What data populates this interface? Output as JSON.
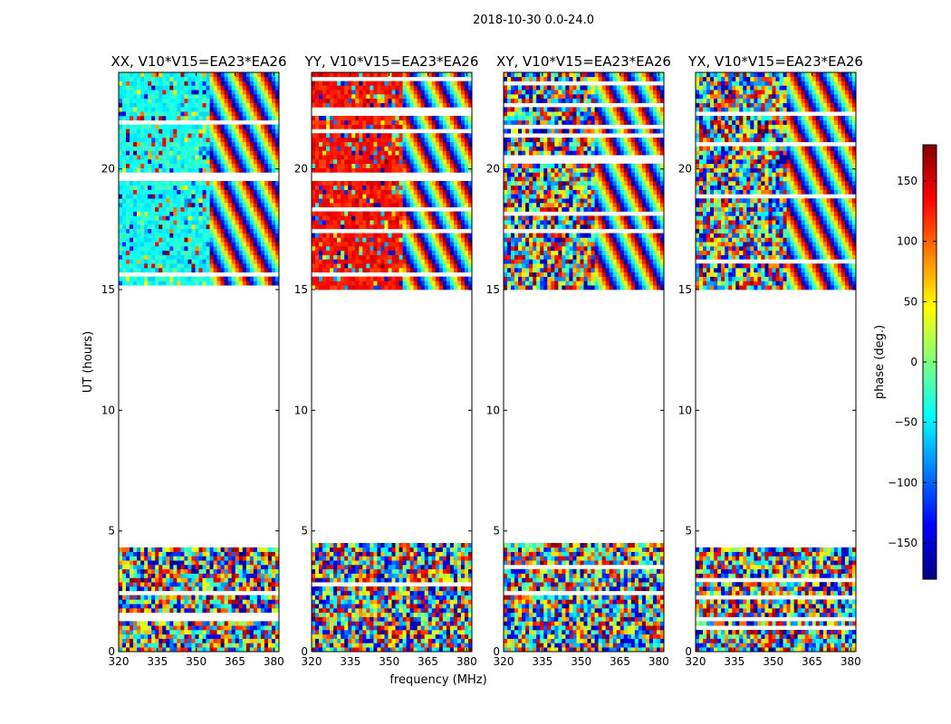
{
  "figure": {
    "suptitle": "2018-10-30 0.0-24.0",
    "xlabel": "frequency (MHz)",
    "ylabel": "UT (hours)"
  },
  "chart_data": [
    {
      "type": "heatmap",
      "title": "XX, V10*V15=EA23*EA26",
      "xlabel": "frequency (MHz)",
      "ylabel": "UT (hours)",
      "xlim": [
        320,
        382
      ],
      "ylim": [
        0,
        24
      ],
      "xticks": [
        320,
        335,
        350,
        365,
        380
      ],
      "yticks": [
        0,
        5,
        10,
        15,
        20
      ],
      "data_ut_ranges": [
        [
          0.0,
          4.5
        ],
        [
          15.0,
          24.0
        ]
      ],
      "dominant_phase_deg": -40
    },
    {
      "type": "heatmap",
      "title": "YY, V10*V15=EA23*EA26",
      "xlabel": "frequency (MHz)",
      "ylabel": "UT (hours)",
      "xlim": [
        320,
        382
      ],
      "ylim": [
        0,
        24
      ],
      "xticks": [
        320,
        335,
        350,
        365,
        380
      ],
      "yticks": [
        0,
        5,
        10,
        15,
        20
      ],
      "data_ut_ranges": [
        [
          0.0,
          4.5
        ],
        [
          15.0,
          24.0
        ]
      ],
      "dominant_phase_deg": 130
    },
    {
      "type": "heatmap",
      "title": "XY, V10*V15=EA23*EA26",
      "xlabel": "frequency (MHz)",
      "ylabel": "UT (hours)",
      "xlim": [
        320,
        382
      ],
      "ylim": [
        0,
        24
      ],
      "xticks": [
        320,
        335,
        350,
        365,
        380
      ],
      "yticks": [
        0,
        5,
        10,
        15,
        20
      ],
      "data_ut_ranges": [
        [
          0.0,
          4.5
        ],
        [
          15.0,
          24.0
        ]
      ],
      "dominant_phase_deg": null
    },
    {
      "type": "heatmap",
      "title": "YX, V10*V15=EA23*EA26",
      "xlabel": "frequency (MHz)",
      "ylabel": "UT (hours)",
      "xlim": [
        320,
        382
      ],
      "ylim": [
        0,
        24
      ],
      "xticks": [
        320,
        335,
        350,
        365,
        380
      ],
      "yticks": [
        0,
        5,
        10,
        15,
        20
      ],
      "data_ut_ranges": [
        [
          0.0,
          4.5
        ],
        [
          15.0,
          24.0
        ]
      ],
      "dominant_phase_deg": null
    }
  ],
  "colorbar": {
    "label": "phase (deg.)",
    "range": [
      -180,
      180
    ],
    "ticks": [
      150,
      100,
      50,
      0,
      -50,
      -100,
      -150
    ],
    "tick_labels": [
      "150",
      "100",
      "50",
      "0",
      "−50",
      "−100",
      "−150"
    ],
    "colormap": "jet",
    "colors": [
      "#00007f",
      "#0000ff",
      "#007fff",
      "#00ffff",
      "#7fff7f",
      "#ffff00",
      "#ff7f00",
      "#ff0000",
      "#7f0000"
    ]
  }
}
